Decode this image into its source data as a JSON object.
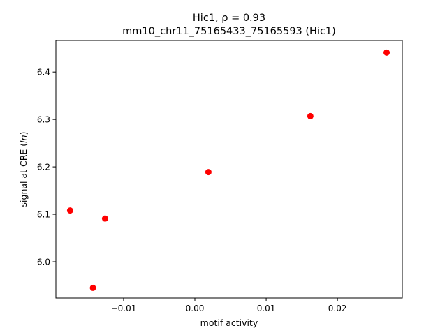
{
  "chart_data": {
    "type": "scatter",
    "title_prefix": "Hic1, ",
    "title_rho": "ρ = 0.93",
    "subtitle": "mm10_chr11_75165433_75165593 (Hic1)",
    "xlabel": "motif activity",
    "ylabel_prefix": "signal at CRE (",
    "ylabel_italic": "ln",
    "ylabel_suffix": ")",
    "xlim": [
      -0.0195,
      0.0291
    ],
    "ylim": [
      5.9235,
      6.4665
    ],
    "x_ticks": [
      -0.01,
      0.0,
      0.01,
      0.02
    ],
    "x_tick_labels": [
      "−0.01",
      "0.00",
      "0.01",
      "0.02"
    ],
    "y_ticks": [
      6.0,
      6.1,
      6.2,
      6.3,
      6.4
    ],
    "y_tick_labels": [
      "6.0",
      "6.1",
      "6.2",
      "6.3",
      "6.4"
    ],
    "points": [
      {
        "x": -0.0175,
        "y": 6.108
      },
      {
        "x": -0.0143,
        "y": 5.945
      },
      {
        "x": -0.0126,
        "y": 6.091
      },
      {
        "x": 0.0019,
        "y": 6.189
      },
      {
        "x": 0.0162,
        "y": 6.307
      },
      {
        "x": 0.0269,
        "y": 6.441
      }
    ],
    "marker_color": "#ff0000",
    "grid": false
  }
}
